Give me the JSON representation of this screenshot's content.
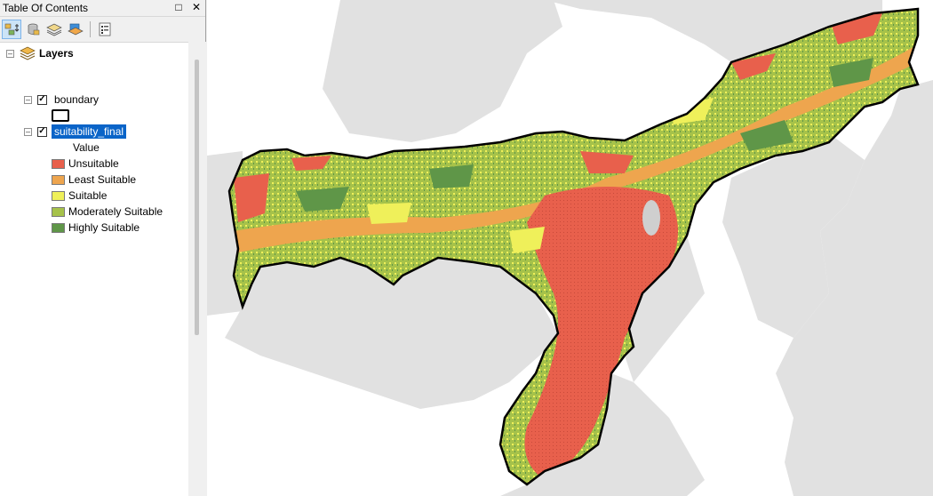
{
  "toc": {
    "title": "Table Of Contents",
    "pin_icon": "restore",
    "close_icon": "close",
    "toolbar_icons": [
      "list-by-drawing-order-icon",
      "list-by-source-icon",
      "list-by-visibility-icon",
      "list-by-selection-icon",
      "options-icon"
    ]
  },
  "tree": {
    "root_label": "Layers",
    "layers": [
      {
        "name": "boundary",
        "checked": true
      },
      {
        "name": "suitability_final",
        "checked": true,
        "selected": true,
        "field_heading": "Value",
        "classes": [
          {
            "label": "Unsuitable",
            "color": "#e8604c"
          },
          {
            "label": "Least Suitable",
            "color": "#eea54e"
          },
          {
            "label": "Suitable",
            "color": "#eff05a"
          },
          {
            "label": "Moderately Suitable",
            "color": "#a6c24a"
          },
          {
            "label": "Highly Suitable",
            "color": "#5f9648"
          }
        ]
      }
    ]
  },
  "map": {
    "background": "#ffffff",
    "neighbor_fill": "#e1e1e1",
    "boundary_color": "#000000"
  }
}
